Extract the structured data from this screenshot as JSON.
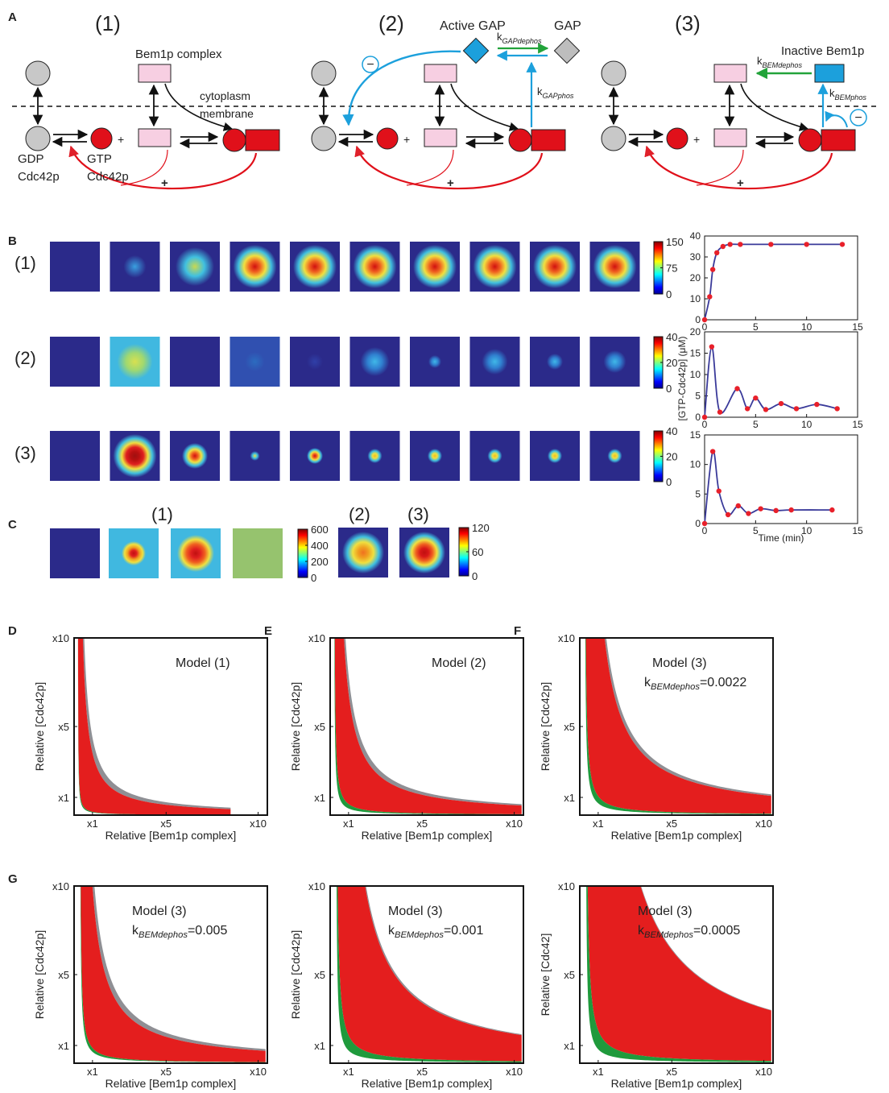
{
  "panel_a": {
    "label": "A",
    "model_labels": [
      "(1)",
      "(2)",
      "(3)"
    ],
    "bem1p_complex": "Bem1p complex",
    "cytoplasm": "cytoplasm",
    "membrane": "membrane",
    "gdp": "GDP",
    "gdp_cdc42p": "Cdc42p",
    "gtp": "GTP",
    "gtp_cdc42p": "Cdc42p",
    "plus_signs": [
      "+",
      "+",
      "+",
      "+",
      "+",
      "+"
    ],
    "minus_signs": [
      "−",
      "−"
    ],
    "active_gap": "Active GAP",
    "gap": "GAP",
    "k_gap_dephos": {
      "main": "k",
      "sub": "GAPdephos"
    },
    "k_gap_phos": {
      "main": "k",
      "sub": "GAPphos"
    },
    "inactive_bem1p": "Inactive Bem1p",
    "k_bem_dephos": {
      "main": "k",
      "sub": "BEMdephos"
    },
    "k_bem_phos": {
      "main": "k",
      "sub": "BEMphos"
    }
  },
  "panel_b": {
    "label": "B",
    "row_labels": [
      "(1)",
      "(2)",
      "(3)"
    ],
    "colorbars": [
      {
        "lim": [
          0,
          150
        ],
        "ticks": [
          0,
          75,
          150
        ]
      },
      {
        "lim": [
          0,
          40
        ],
        "ticks": [
          0,
          20,
          40
        ]
      },
      {
        "lim": [
          0,
          40
        ],
        "ticks": [
          0,
          20,
          40
        ]
      }
    ],
    "y_label": "[GTP-Cdc42p] (μM)",
    "x_label": "Time (min)",
    "plots": [
      {
        "type": "line",
        "x": [
          0,
          0.5,
          0.8,
          1.2,
          1.8,
          2.5,
          3.5,
          6.5,
          10,
          13.5
        ],
        "values": [
          0,
          11,
          24,
          32,
          35,
          36,
          36,
          36,
          36,
          36
        ],
        "xlim": [
          0,
          15
        ],
        "ylim": [
          0,
          40
        ],
        "xticks": [
          0,
          5,
          10,
          15
        ],
        "yticks": [
          0,
          10,
          20,
          30,
          40
        ],
        "color": "#3a3a9a",
        "marker_color": "#e8202a"
      },
      {
        "type": "line",
        "x": [
          0,
          0.7,
          1.5,
          3.2,
          4.2,
          5,
          6,
          7.5,
          9,
          11,
          13
        ],
        "values": [
          0,
          16.5,
          1.2,
          6.7,
          2,
          4.5,
          1.8,
          3.2,
          2,
          3,
          2
        ],
        "xlim": [
          0,
          15
        ],
        "ylim": [
          0,
          20
        ],
        "xticks": [
          0,
          5,
          10,
          15
        ],
        "yticks": [
          0,
          5,
          10,
          15,
          20
        ],
        "color": "#3a3a9a",
        "marker_color": "#e8202a"
      },
      {
        "type": "line",
        "x": [
          0,
          0.8,
          1.4,
          2.3,
          3.3,
          4.3,
          5.5,
          7,
          8.5,
          12.5
        ],
        "values": [
          0,
          12.2,
          5.5,
          1.5,
          3,
          1.7,
          2.5,
          2.2,
          2.3,
          2.3
        ],
        "xlim": [
          0,
          15
        ],
        "ylim": [
          0,
          15
        ],
        "xticks": [
          0,
          5,
          10,
          15
        ],
        "yticks": [
          0,
          5,
          10,
          15
        ],
        "color": "#3a3a9a",
        "marker_color": "#e8202a"
      }
    ]
  },
  "panel_c": {
    "label": "C",
    "group_labels": [
      "(1)",
      "(2)",
      "(3)"
    ],
    "colorbars": [
      {
        "lim": [
          0,
          600
        ],
        "ticks": [
          0,
          200,
          400,
          600
        ]
      },
      {
        "lim": [
          0,
          120
        ],
        "ticks": [
          0,
          60,
          120
        ]
      }
    ]
  },
  "panels_dg": [
    {
      "label": "D",
      "title": "Model (1)",
      "x_label": "Relative  [Bem1p complex]",
      "y_label": "Relative [Cdc42p]",
      "xlim": [
        0,
        10.5
      ],
      "ylim": [
        0,
        10
      ],
      "xticks": [
        {
          "value": 1,
          "label": "x1"
        },
        {
          "value": 5,
          "label": "x5"
        },
        {
          "value": 10,
          "label": "x10"
        }
      ],
      "yticks": [
        {
          "value": 1,
          "label": "x1"
        },
        {
          "value": 5,
          "label": "x5"
        },
        {
          "value": 10,
          "label": "x10"
        }
      ]
    },
    {
      "label": "E",
      "title": "Model (2)",
      "x_label": "Relative [Bem1p complex]",
      "y_label": "Relative [Cdc42p]",
      "xlim": [
        0,
        10.5
      ],
      "ylim": [
        0,
        10
      ],
      "xticks": [
        {
          "value": 1,
          "label": "x1"
        },
        {
          "value": 5,
          "label": "x5"
        },
        {
          "value": 10,
          "label": "x10"
        }
      ],
      "yticks": [
        {
          "value": 1,
          "label": "x1"
        },
        {
          "value": 5,
          "label": "x5"
        },
        {
          "value": 10,
          "label": "x10"
        }
      ]
    },
    {
      "label": "F",
      "title": "Model (3)",
      "k": {
        "main": "k",
        "sub": "BEMdephos",
        "value": "=0.0022"
      },
      "x_label": "Relative [Bem1p complex]",
      "y_label": "Relative [Cdc42p]",
      "xlim": [
        0,
        10.5
      ],
      "ylim": [
        0,
        10
      ],
      "xticks": [
        {
          "value": 1,
          "label": "x1"
        },
        {
          "value": 5,
          "label": "x5"
        },
        {
          "value": 10,
          "label": "x10"
        }
      ],
      "yticks": [
        {
          "value": 1,
          "label": "x1"
        },
        {
          "value": 5,
          "label": "x5"
        },
        {
          "value": 10,
          "label": "x10"
        }
      ]
    },
    {
      "label": "G",
      "title": "Model (3)",
      "k": {
        "main": "k",
        "sub": "BEMdephos",
        "value": "=0.005"
      },
      "x_label": "Relative [Bem1p complex]",
      "y_label": "Relative [Cdc42p]",
      "xlim": [
        0,
        10.5
      ],
      "ylim": [
        0,
        10
      ],
      "xticks": [
        {
          "value": 1,
          "label": "x1"
        },
        {
          "value": 5,
          "label": "x5"
        },
        {
          "value": 10,
          "label": "x10"
        }
      ],
      "yticks": [
        {
          "value": 1,
          "label": "x1"
        },
        {
          "value": 5,
          "label": "x5"
        },
        {
          "value": 10,
          "label": "x10"
        }
      ]
    },
    {
      "title": "Model (3)",
      "k": {
        "main": "k",
        "sub": "BEMdephos",
        "value": "=0.001"
      },
      "x_label": "Relative [Bem1p complex]",
      "y_label": "Relative [Cdc42p]",
      "xlim": [
        0,
        10.5
      ],
      "ylim": [
        0,
        10
      ],
      "xticks": [
        {
          "value": 1,
          "label": "x1"
        },
        {
          "value": 5,
          "label": "x5"
        },
        {
          "value": 10,
          "label": "x10"
        }
      ],
      "yticks": [
        {
          "value": 1,
          "label": "x1"
        },
        {
          "value": 5,
          "label": "x5"
        },
        {
          "value": 10,
          "label": "x10"
        }
      ]
    },
    {
      "title": "Model (3)",
      "k": {
        "main": "k",
        "sub": "BEMdephos",
        "value": "=0.0005"
      },
      "x_label": "Relative [Bem1p complex]",
      "y_label": "Relative [Cdc42]",
      "xlim": [
        0,
        10.5
      ],
      "ylim": [
        0,
        10
      ],
      "xticks": [
        {
          "value": 1,
          "label": "x1"
        },
        {
          "value": 5,
          "label": "x5"
        },
        {
          "value": 10,
          "label": "x10"
        }
      ],
      "yticks": [
        {
          "value": 1,
          "label": "x1"
        },
        {
          "value": 5,
          "label": "x5"
        },
        {
          "value": 10,
          "label": "x10"
        }
      ]
    }
  ]
}
